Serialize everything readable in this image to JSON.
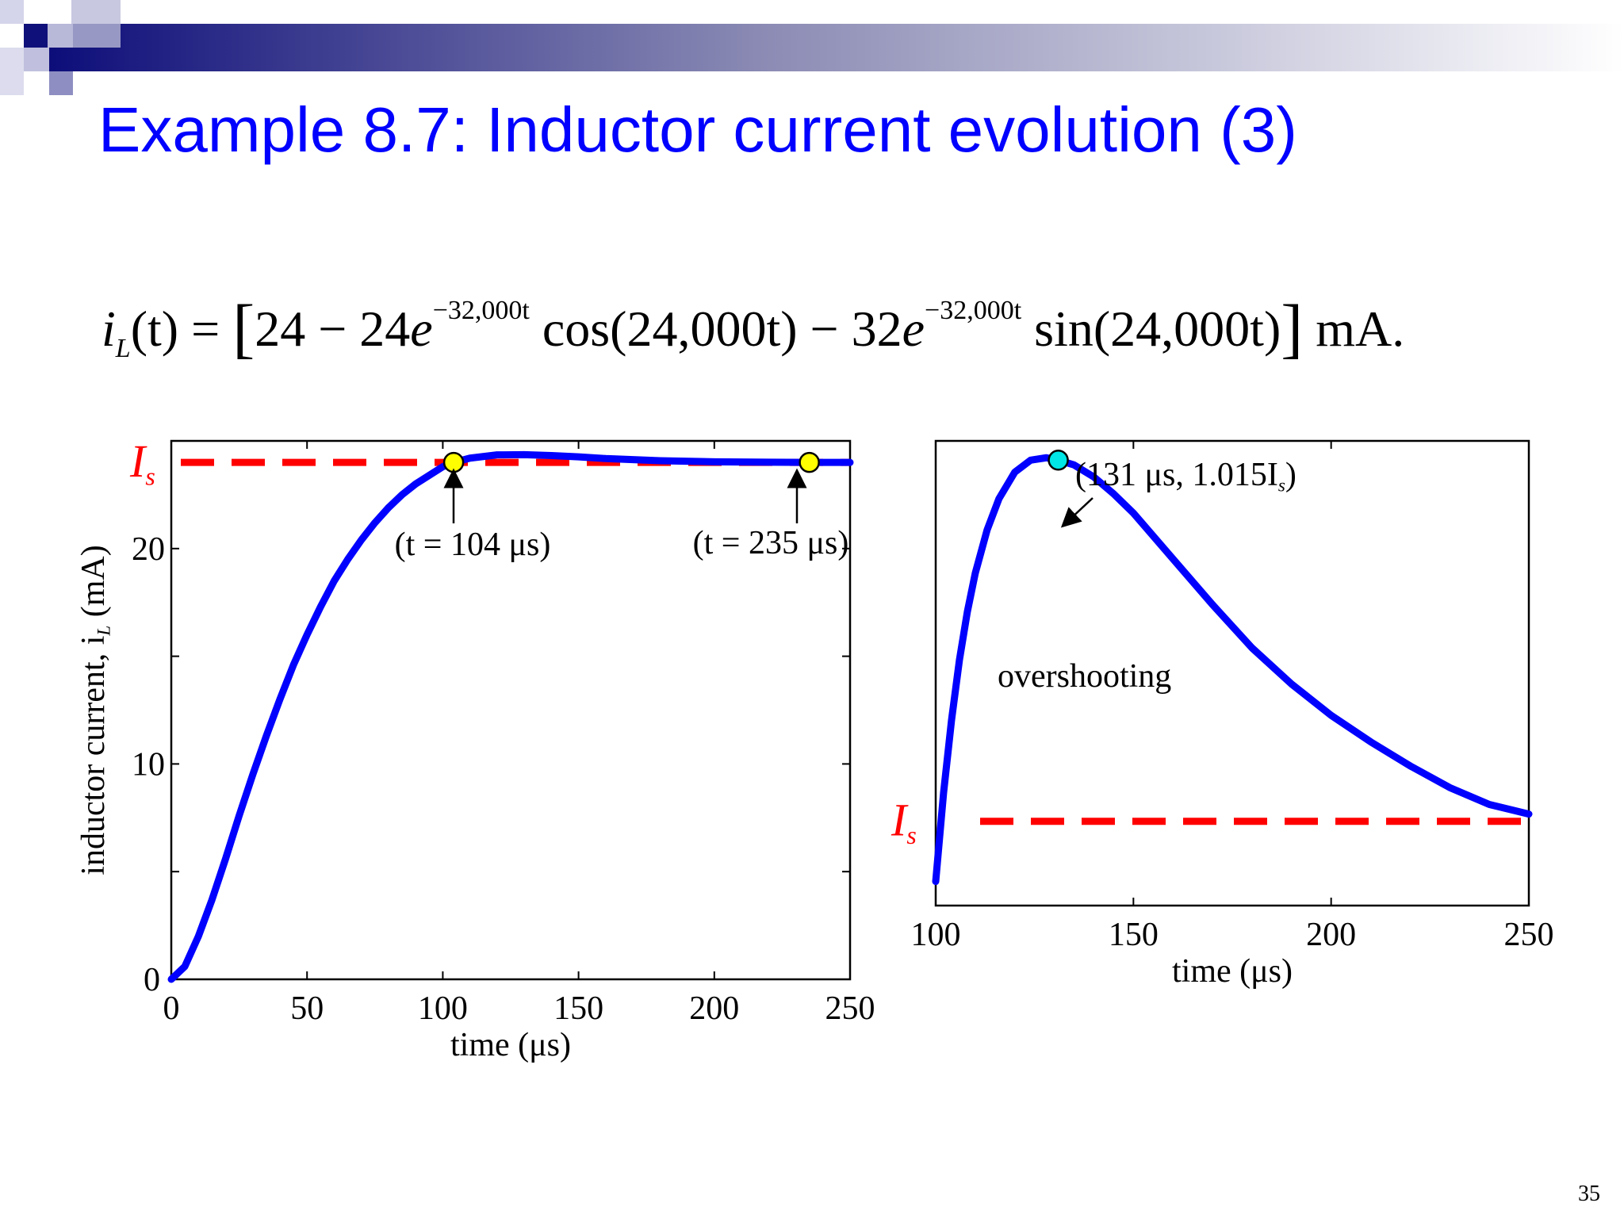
{
  "slide": {
    "title": "Example 8.7: Inductor current evolution (3)",
    "page_number": "35",
    "accent_color": "#0000ff",
    "formula": {
      "lhs_fn": "i",
      "lhs_sub": "L",
      "lhs_arg": "(t) =",
      "term1": "24 − 24",
      "term1_e": "e",
      "exp1": "−32,000t",
      "cos_part": " cos(24,000t) − 32",
      "term2_e": "e",
      "exp2": "−32,000t",
      "sin_part": " sin(24,000t)",
      "unit": " mA."
    }
  },
  "chart_data": [
    {
      "type": "line",
      "xlabel": "time (μs)",
      "ylabel": "inductor current, i",
      "ylabel_sub": "L",
      "ylabel_tail": " (mA)",
      "xlim": [
        0,
        250
      ],
      "ylim": [
        0,
        25
      ],
      "xticks": [
        0,
        50,
        100,
        150,
        200,
        250
      ],
      "yticks": [
        0,
        10,
        20
      ],
      "yticks_minor": [
        5,
        15
      ],
      "origin_label": "0",
      "series": [
        {
          "color": "#0000ff",
          "x": [
            0,
            5,
            10,
            15,
            20,
            25,
            30,
            35,
            40,
            45,
            50,
            55,
            60,
            65,
            70,
            75,
            80,
            85,
            90,
            95,
            100,
            104,
            110,
            120,
            130,
            140,
            150,
            160,
            180,
            200,
            220,
            235,
            250
          ],
          "y": [
            0,
            0.6,
            2.0,
            3.7,
            5.6,
            7.6,
            9.5,
            11.3,
            13.0,
            14.6,
            16.0,
            17.3,
            18.5,
            19.5,
            20.4,
            21.2,
            21.9,
            22.5,
            23.0,
            23.4,
            23.8,
            24.0,
            24.2,
            24.35,
            24.36,
            24.32,
            24.26,
            24.18,
            24.08,
            24.03,
            24.01,
            24.0,
            24.0
          ]
        }
      ],
      "reference_line": {
        "label": "I",
        "label_sub": "s",
        "value": 24,
        "color": "#ff0000"
      },
      "markers": [
        {
          "x": 104,
          "y": 24,
          "color": "#ffff00",
          "label": "(t = 104 μs)"
        },
        {
          "x": 235,
          "y": 24,
          "color": "#ffff00",
          "label": "(t = 235 μs)"
        }
      ]
    },
    {
      "type": "line",
      "xlabel": "time (μs)",
      "xlim": [
        100,
        250
      ],
      "ylim": [
        0.9965,
        1.0158
      ],
      "xticks": [
        100,
        150,
        200,
        250
      ],
      "series": [
        {
          "color": "#0000ff",
          "x": [
            100,
            102,
            104,
            106,
            108,
            110,
            113,
            116,
            120,
            124,
            128,
            131,
            135,
            140,
            145,
            150,
            160,
            170,
            180,
            190,
            200,
            210,
            220,
            230,
            240,
            250
          ],
          "y": [
            0.9975,
            1.0012,
            1.0042,
            1.0067,
            1.0087,
            1.0103,
            1.0121,
            1.0134,
            1.0145,
            1.015,
            1.0151,
            1.015,
            1.0148,
            1.0143,
            1.0136,
            1.0128,
            1.0109,
            1.009,
            1.0072,
            1.0057,
            1.0044,
            1.0033,
            1.0023,
            1.0014,
            1.0007,
            1.0003
          ]
        }
      ],
      "reference_line": {
        "label": "I",
        "label_sub": "s",
        "value": 1.0,
        "color": "#ff0000"
      },
      "markers": [
        {
          "x": 131,
          "y": 1.015,
          "color": "#00e5e5",
          "label": "(131 μs, 1.015I",
          "label_sub": "s",
          "label_tail": ")"
        }
      ],
      "annotation": "overshooting"
    }
  ]
}
